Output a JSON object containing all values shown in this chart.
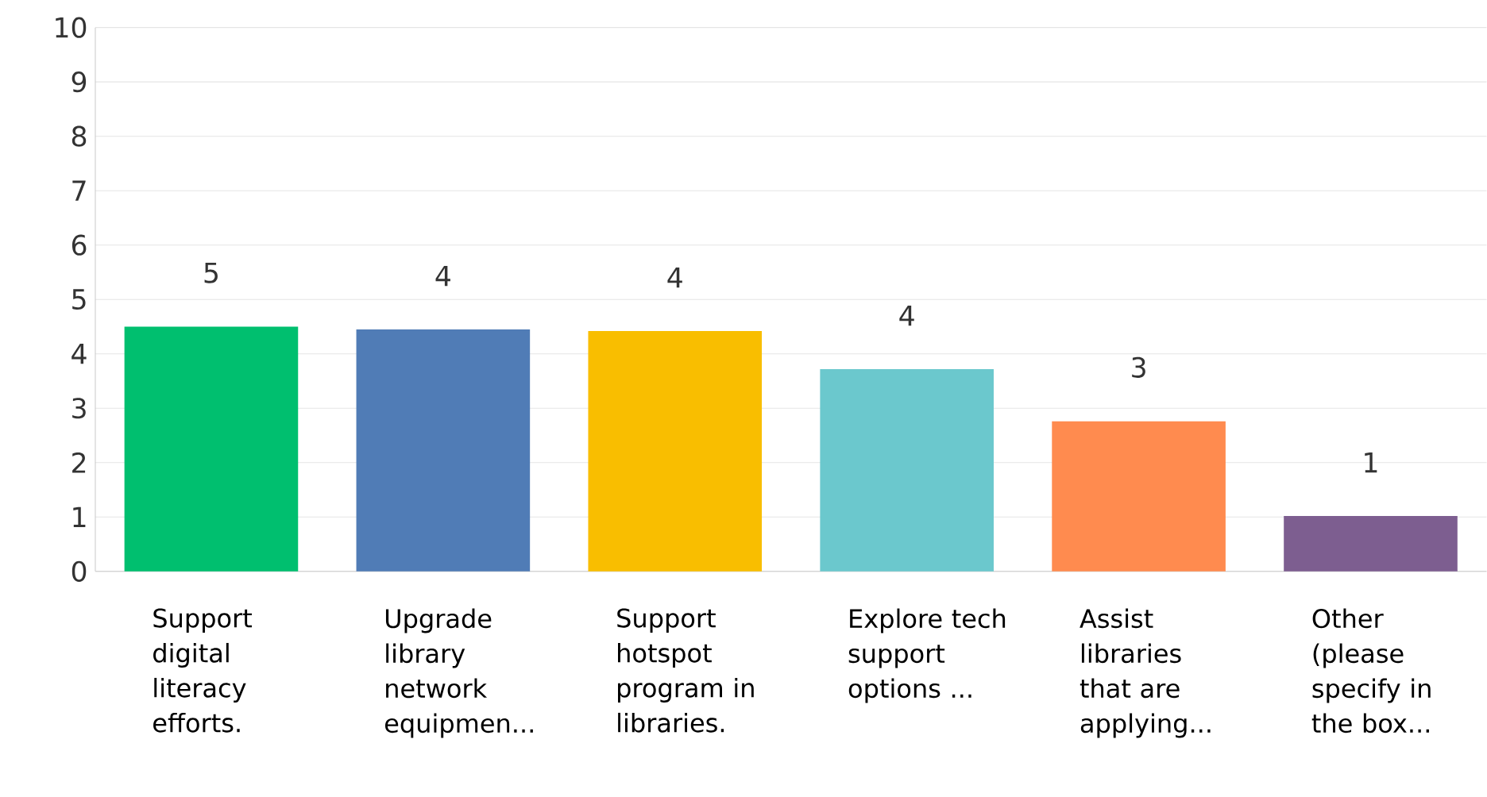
{
  "chart_data": {
    "type": "bar",
    "categories": [
      "Support digital literacy efforts.",
      "Upgrade library network equipmen...",
      "Support hotspot program in libraries.",
      "Explore tech support options ...",
      "Assist libraries that are applying...",
      "Other (please specify in the box..."
    ],
    "values": [
      4.5,
      4.45,
      4.42,
      3.72,
      2.76,
      1.02
    ],
    "colors": [
      "#00bf6f",
      "#507cb6",
      "#f9be00",
      "#6bc8cd",
      "#ff8b4f",
      "#7d5e90"
    ],
    "value_labels": [
      "5",
      "4",
      "4",
      "4",
      "3",
      "1"
    ],
    "ylim": [
      0,
      10
    ],
    "yticks": [
      0,
      1,
      2,
      3,
      4,
      5,
      6,
      7,
      8,
      9,
      10
    ],
    "grid": "y"
  }
}
